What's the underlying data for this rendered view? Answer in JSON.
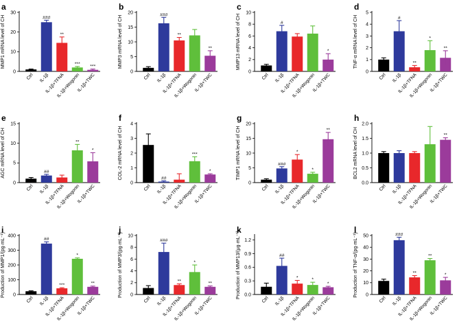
{
  "figure": {
    "categories": [
      "Ctrl",
      "IL-1β",
      "IL-1β+TFNA",
      "IL-1β+Wogonin",
      "IL-1β+TWC"
    ],
    "colors": [
      "#000000",
      "#2e3a9c",
      "#e8282b",
      "#5fbf3b",
      "#9b3b9b"
    ]
  },
  "chart_data": [
    {
      "letter": "a",
      "type": "bar",
      "ylabel": "MMP1 mRNA level of CH",
      "ylim": [
        0,
        30
      ],
      "yticks": [
        "0",
        "10",
        "20",
        "30"
      ],
      "values": [
        1,
        25,
        14.5,
        2,
        0.8
      ],
      "errors": [
        0.2,
        1,
        3,
        0.5,
        0.4
      ],
      "significance": [
        "",
        "###",
        "**",
        "***",
        "***"
      ]
    },
    {
      "letter": "b",
      "type": "bar",
      "ylabel": "MMP3 mRNA level of CH",
      "ylim": [
        0,
        20
      ],
      "yticks": [
        "0",
        "5",
        "10",
        "15",
        "20"
      ],
      "values": [
        1.2,
        16.3,
        10.5,
        12.2,
        5.3
      ],
      "errors": [
        0.4,
        2,
        1,
        2,
        1.7
      ],
      "significance": [
        "",
        "###",
        "**",
        "",
        "**"
      ]
    },
    {
      "letter": "c",
      "type": "bar",
      "ylabel": "MMP13 mRNA level of CH",
      "ylim": [
        0,
        10
      ],
      "yticks": [
        "0",
        "2",
        "4",
        "6",
        "8",
        "10"
      ],
      "values": [
        1,
        6.8,
        5.9,
        6.4,
        2
      ],
      "errors": [
        0.2,
        1,
        0.5,
        1.3,
        1
      ],
      "significance": [
        "",
        "#",
        "",
        "",
        "*"
      ]
    },
    {
      "letter": "d",
      "type": "bar",
      "ylabel": "TNF-α mRNA level of CH",
      "ylim": [
        0,
        5
      ],
      "yticks": [
        "0",
        "1",
        "2",
        "3",
        "4",
        "5"
      ],
      "values": [
        1,
        3.4,
        0.35,
        1.8,
        1.15
      ],
      "errors": [
        0.15,
        0.9,
        0.15,
        0.8,
        0.6
      ],
      "significance": [
        "",
        "#",
        "**",
        "*",
        "**"
      ]
    },
    {
      "letter": "e",
      "type": "bar",
      "ylabel": "AGC mRNA level of CH",
      "ylim": [
        0,
        15
      ],
      "yticks": [
        "0",
        "5",
        "10",
        "15"
      ],
      "values": [
        1,
        1.8,
        1.3,
        8.2,
        5.4
      ],
      "errors": [
        0.3,
        0.3,
        0.6,
        1.5,
        2.2
      ],
      "significance": [
        "",
        "##",
        "",
        "**",
        "*"
      ]
    },
    {
      "letter": "f",
      "type": "bar",
      "ylabel": "COL-2 mRNA level of CH",
      "ylim": [
        0,
        4
      ],
      "yticks": [
        "0",
        "1",
        "2",
        "3",
        "4"
      ],
      "values": [
        2.55,
        0.07,
        0.2,
        1.45,
        0.55
      ],
      "errors": [
        0.75,
        0.05,
        0.4,
        0.3,
        0.05
      ],
      "significance": [
        "",
        "##",
        "",
        "***",
        "*"
      ]
    },
    {
      "letter": "g",
      "type": "bar",
      "ylabel": "TIMP1 mRNA level of CH",
      "ylim": [
        0,
        20
      ],
      "yticks": [
        "0",
        "5",
        "10",
        "15",
        "20"
      ],
      "values": [
        1,
        4.8,
        7.8,
        3,
        14.7
      ],
      "errors": [
        0.3,
        0.6,
        1.7,
        0.5,
        2.3
      ],
      "significance": [
        "",
        "###",
        "*",
        "*",
        "**"
      ]
    },
    {
      "letter": "h",
      "type": "bar",
      "ylabel": "BCL2 mRNA level of CH",
      "ylim": [
        0,
        2
      ],
      "yticks": [
        "0.0",
        "0.5",
        "1.0",
        "1.5",
        "2.0"
      ],
      "values": [
        1,
        1,
        1,
        1.3,
        1.45
      ],
      "errors": [
        0.05,
        0.08,
        0.05,
        0.6,
        0.07
      ],
      "significance": [
        "",
        "",
        "",
        "",
        "**"
      ]
    },
    {
      "letter": "i",
      "type": "bar",
      "ylabel": "Production of MMP1/(pg·mL⁻¹)",
      "ylim": [
        0,
        400
      ],
      "yticks": [
        "0",
        "100",
        "200",
        "300",
        "400"
      ],
      "values": [
        22,
        345,
        42,
        242,
        52
      ],
      "errors": [
        3,
        12,
        4,
        6,
        5
      ],
      "significance": [
        "",
        "##",
        "***",
        "*",
        "**"
      ]
    },
    {
      "letter": "j",
      "type": "bar",
      "ylabel": "Production of MMP3/(pg·mL⁻¹)",
      "ylim": [
        0,
        10
      ],
      "yticks": [
        "0",
        "2",
        "4",
        "6",
        "8",
        "10"
      ],
      "values": [
        1.1,
        7.2,
        1.6,
        3.8,
        1.3
      ],
      "errors": [
        0.4,
        1.5,
        0.2,
        1.2,
        0.15
      ],
      "significance": [
        "",
        "###",
        "**",
        "*",
        "**"
      ]
    },
    {
      "letter": "k",
      "type": "bar",
      "ylabel": "Production of MMP13/(μg·mL⁻¹)",
      "ylim": [
        0,
        1.3
      ],
      "yticks": [
        "0.0",
        "0.3",
        "0.6",
        "0.9",
        "1.2"
      ],
      "values": [
        0.17,
        0.63,
        0.24,
        0.21,
        0.16
      ],
      "errors": [
        0.08,
        0.17,
        0.07,
        0.06,
        0.02
      ],
      "significance": [
        "",
        "##",
        "*",
        "*",
        "*"
      ]
    },
    {
      "letter": "l",
      "type": "bar",
      "ylabel": "Production of TNF-α/(pg·mL⁻¹)",
      "ylim": [
        0,
        50
      ],
      "yticks": [
        "0",
        "10",
        "20",
        "30",
        "40",
        "50"
      ],
      "values": [
        11.5,
        46,
        14.5,
        29,
        12
      ],
      "errors": [
        1.5,
        2.5,
        1.5,
        1.5,
        2.5
      ],
      "significance": [
        "",
        "###",
        "**",
        "**",
        "*"
      ]
    }
  ]
}
